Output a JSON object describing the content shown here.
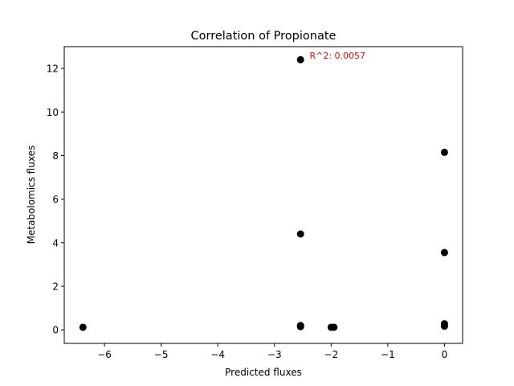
{
  "chart_data": {
    "type": "scatter",
    "title": "Correlation of Propionate",
    "xlabel": "Predicted fluxes",
    "ylabel": "Metabolomics fluxes",
    "xlim": [
      -6.71,
      0.32
    ],
    "ylim": [
      -0.62,
      13.0
    ],
    "xticks": [
      -6,
      -5,
      -4,
      -3,
      -2,
      -1,
      0
    ],
    "xtick_labels": [
      "−6",
      "−5",
      "−4",
      "−3",
      "−2",
      "−1",
      "0"
    ],
    "yticks": [
      0,
      2,
      4,
      6,
      8,
      10,
      12
    ],
    "ytick_labels": [
      "0",
      "2",
      "4",
      "6",
      "8",
      "10",
      "12"
    ],
    "grid": false,
    "marker_color": "#000000",
    "annotation": {
      "text": "R^2: 0.0057",
      "x": -2.38,
      "y": 12.6,
      "color": "#ff0000"
    },
    "points": [
      {
        "x": -6.38,
        "y": 0.12
      },
      {
        "x": -2.54,
        "y": 12.4
      },
      {
        "x": -2.54,
        "y": 4.4
      },
      {
        "x": -2.54,
        "y": 0.2
      },
      {
        "x": -2.54,
        "y": 0.15
      },
      {
        "x": -2.0,
        "y": 0.12
      },
      {
        "x": -1.95,
        "y": 0.12
      },
      {
        "x": 0.0,
        "y": 8.15
      },
      {
        "x": 0.0,
        "y": 3.55
      },
      {
        "x": 0.0,
        "y": 0.28
      },
      {
        "x": 0.0,
        "y": 0.17
      }
    ]
  }
}
